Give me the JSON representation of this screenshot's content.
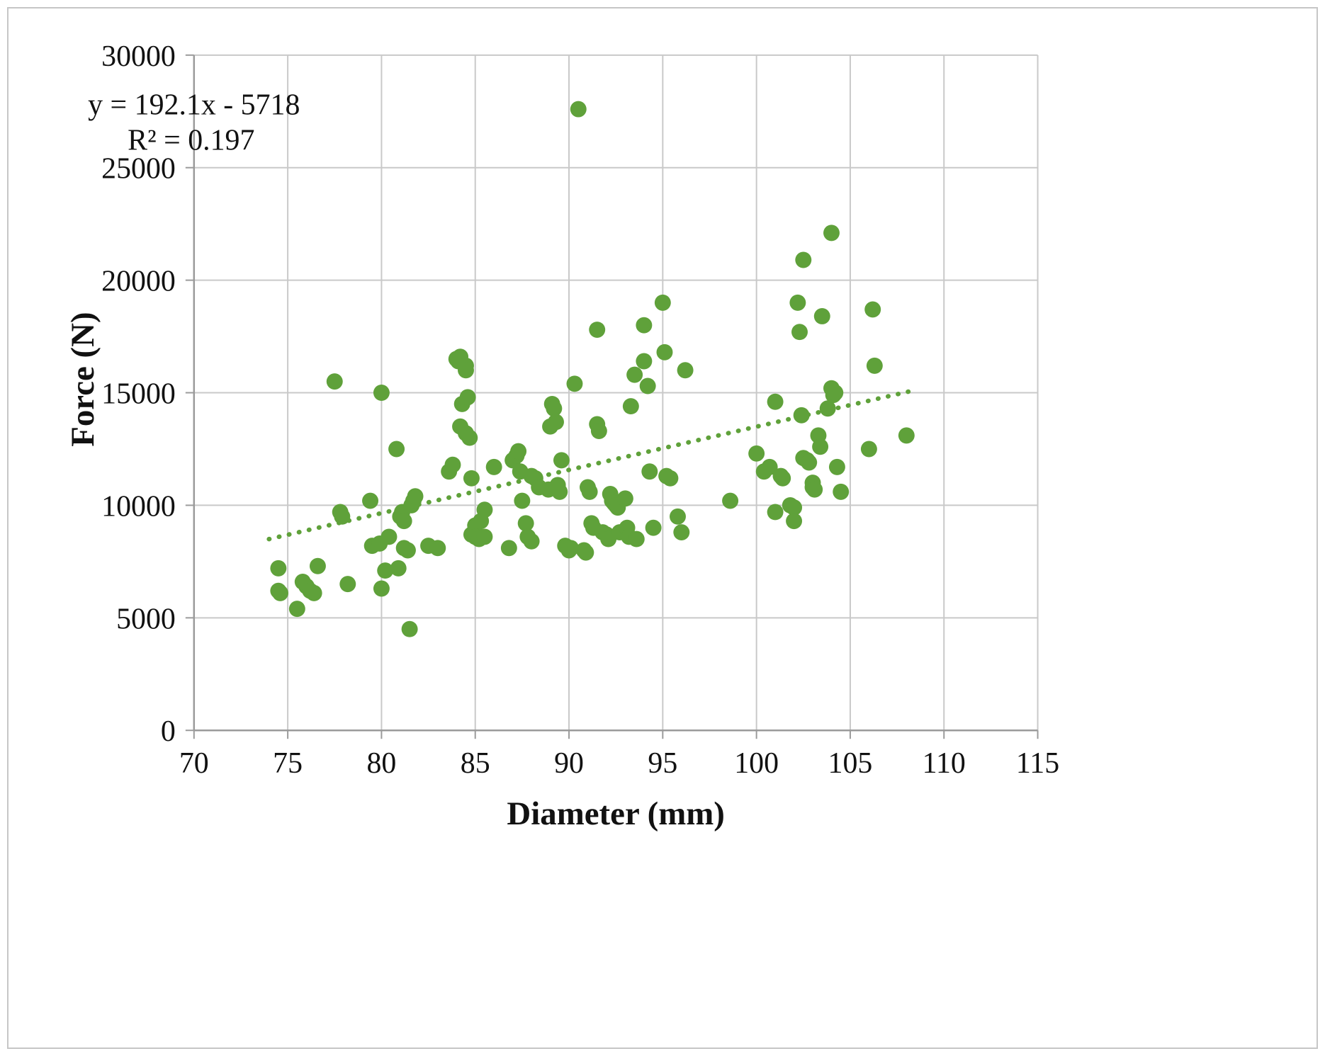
{
  "chart_data": {
    "type": "scatter",
    "title": "",
    "xlabel": "Diameter (mm)",
    "ylabel": "Force (N)",
    "xlim": [
      70,
      115
    ],
    "ylim": [
      0,
      30000
    ],
    "xticks": [
      70,
      75,
      80,
      85,
      90,
      95,
      100,
      105,
      110,
      115
    ],
    "yticks": [
      0,
      5000,
      10000,
      15000,
      20000,
      25000,
      30000
    ],
    "grid": true,
    "legend": "none",
    "point_color": "#5fa13a",
    "annotation": {
      "line1": "y = 192.1x - 5718",
      "line2": "R² = 0.197"
    },
    "trendline": {
      "slope": 192.1,
      "intercept": -5718,
      "x_start": 74,
      "x_end": 108.5,
      "style": "dotted"
    },
    "points": [
      [
        74.5,
        7200
      ],
      [
        74.5,
        6200
      ],
      [
        74.6,
        6100
      ],
      [
        75.5,
        5400
      ],
      [
        75.8,
        6600
      ],
      [
        76.0,
        6400
      ],
      [
        76.2,
        6200
      ],
      [
        76.4,
        6100
      ],
      [
        76.6,
        7300
      ],
      [
        77.5,
        15500
      ],
      [
        77.8,
        9700
      ],
      [
        77.9,
        9500
      ],
      [
        78.2,
        6500
      ],
      [
        79.4,
        10200
      ],
      [
        79.5,
        8200
      ],
      [
        79.9,
        8300
      ],
      [
        80.0,
        15000
      ],
      [
        80.0,
        6300
      ],
      [
        80.2,
        7100
      ],
      [
        80.4,
        8600
      ],
      [
        80.8,
        12500
      ],
      [
        80.9,
        7200
      ],
      [
        81.0,
        9500
      ],
      [
        81.1,
        9700
      ],
      [
        81.2,
        9300
      ],
      [
        81.2,
        8100
      ],
      [
        81.4,
        8000
      ],
      [
        81.5,
        4500
      ],
      [
        81.6,
        10000
      ],
      [
        81.7,
        10200
      ],
      [
        81.8,
        10400
      ],
      [
        82.5,
        8200
      ],
      [
        83.0,
        8100
      ],
      [
        83.6,
        11500
      ],
      [
        83.8,
        11800
      ],
      [
        84.0,
        16500
      ],
      [
        84.1,
        16400
      ],
      [
        84.2,
        16600
      ],
      [
        84.2,
        13500
      ],
      [
        84.3,
        14500
      ],
      [
        84.5,
        16200
      ],
      [
        84.5,
        16000
      ],
      [
        84.5,
        13200
      ],
      [
        84.6,
        14800
      ],
      [
        84.7,
        13000
      ],
      [
        84.8,
        11200
      ],
      [
        84.8,
        8700
      ],
      [
        85.0,
        9100
      ],
      [
        85.0,
        8600
      ],
      [
        85.2,
        8500
      ],
      [
        85.3,
        9300
      ],
      [
        85.5,
        9800
      ],
      [
        85.5,
        8600
      ],
      [
        86.0,
        11700
      ],
      [
        86.8,
        8100
      ],
      [
        87.0,
        12000
      ],
      [
        87.2,
        12200
      ],
      [
        87.3,
        12400
      ],
      [
        87.4,
        11500
      ],
      [
        87.5,
        10200
      ],
      [
        87.7,
        9200
      ],
      [
        87.8,
        8600
      ],
      [
        88.0,
        8400
      ],
      [
        88.0,
        11300
      ],
      [
        88.2,
        11200
      ],
      [
        88.4,
        10800
      ],
      [
        88.9,
        10700
      ],
      [
        89.0,
        13500
      ],
      [
        89.1,
        14500
      ],
      [
        89.2,
        14300
      ],
      [
        89.3,
        13700
      ],
      [
        89.4,
        10900
      ],
      [
        89.5,
        10600
      ],
      [
        89.6,
        12000
      ],
      [
        89.8,
        8200
      ],
      [
        90.0,
        8000
      ],
      [
        90.1,
        8100
      ],
      [
        90.3,
        15400
      ],
      [
        90.5,
        27600
      ],
      [
        90.8,
        8000
      ],
      [
        90.9,
        7900
      ],
      [
        91.0,
        10800
      ],
      [
        91.1,
        10600
      ],
      [
        91.2,
        9200
      ],
      [
        91.3,
        9000
      ],
      [
        91.5,
        17800
      ],
      [
        91.5,
        13600
      ],
      [
        91.6,
        13300
      ],
      [
        91.8,
        8800
      ],
      [
        92.0,
        8700
      ],
      [
        92.1,
        8500
      ],
      [
        92.2,
        10500
      ],
      [
        92.3,
        10200
      ],
      [
        92.4,
        10100
      ],
      [
        92.5,
        10000
      ],
      [
        92.6,
        9900
      ],
      [
        92.7,
        8800
      ],
      [
        93.0,
        10300
      ],
      [
        93.1,
        9000
      ],
      [
        93.2,
        8600
      ],
      [
        93.3,
        14400
      ],
      [
        93.5,
        15800
      ],
      [
        93.6,
        8500
      ],
      [
        94.0,
        18000
      ],
      [
        94.0,
        16400
      ],
      [
        94.2,
        15300
      ],
      [
        94.3,
        11500
      ],
      [
        94.5,
        9000
      ],
      [
        95.0,
        19000
      ],
      [
        95.1,
        16800
      ],
      [
        95.2,
        11300
      ],
      [
        95.4,
        11200
      ],
      [
        95.8,
        9500
      ],
      [
        96.0,
        8800
      ],
      [
        96.2,
        16000
      ],
      [
        98.6,
        10200
      ],
      [
        100.0,
        12300
      ],
      [
        100.4,
        11500
      ],
      [
        100.7,
        11700
      ],
      [
        101.0,
        14600
      ],
      [
        101.0,
        9700
      ],
      [
        101.3,
        11300
      ],
      [
        101.4,
        11200
      ],
      [
        101.8,
        10000
      ],
      [
        102.0,
        9900
      ],
      [
        102.0,
        9300
      ],
      [
        102.2,
        19000
      ],
      [
        102.3,
        17700
      ],
      [
        102.5,
        20900
      ],
      [
        102.4,
        14000
      ],
      [
        102.5,
        12100
      ],
      [
        102.7,
        12000
      ],
      [
        102.8,
        11900
      ],
      [
        103.0,
        11000
      ],
      [
        103.0,
        10800
      ],
      [
        103.1,
        10700
      ],
      [
        103.3,
        13100
      ],
      [
        103.4,
        12600
      ],
      [
        103.5,
        18400
      ],
      [
        103.8,
        14300
      ],
      [
        104.0,
        22100
      ],
      [
        104.0,
        15200
      ],
      [
        104.1,
        14900
      ],
      [
        104.2,
        15000
      ],
      [
        104.3,
        11700
      ],
      [
        104.5,
        10600
      ],
      [
        106.0,
        12500
      ],
      [
        106.2,
        18700
      ],
      [
        106.3,
        16200
      ],
      [
        108.0,
        13100
      ]
    ]
  }
}
